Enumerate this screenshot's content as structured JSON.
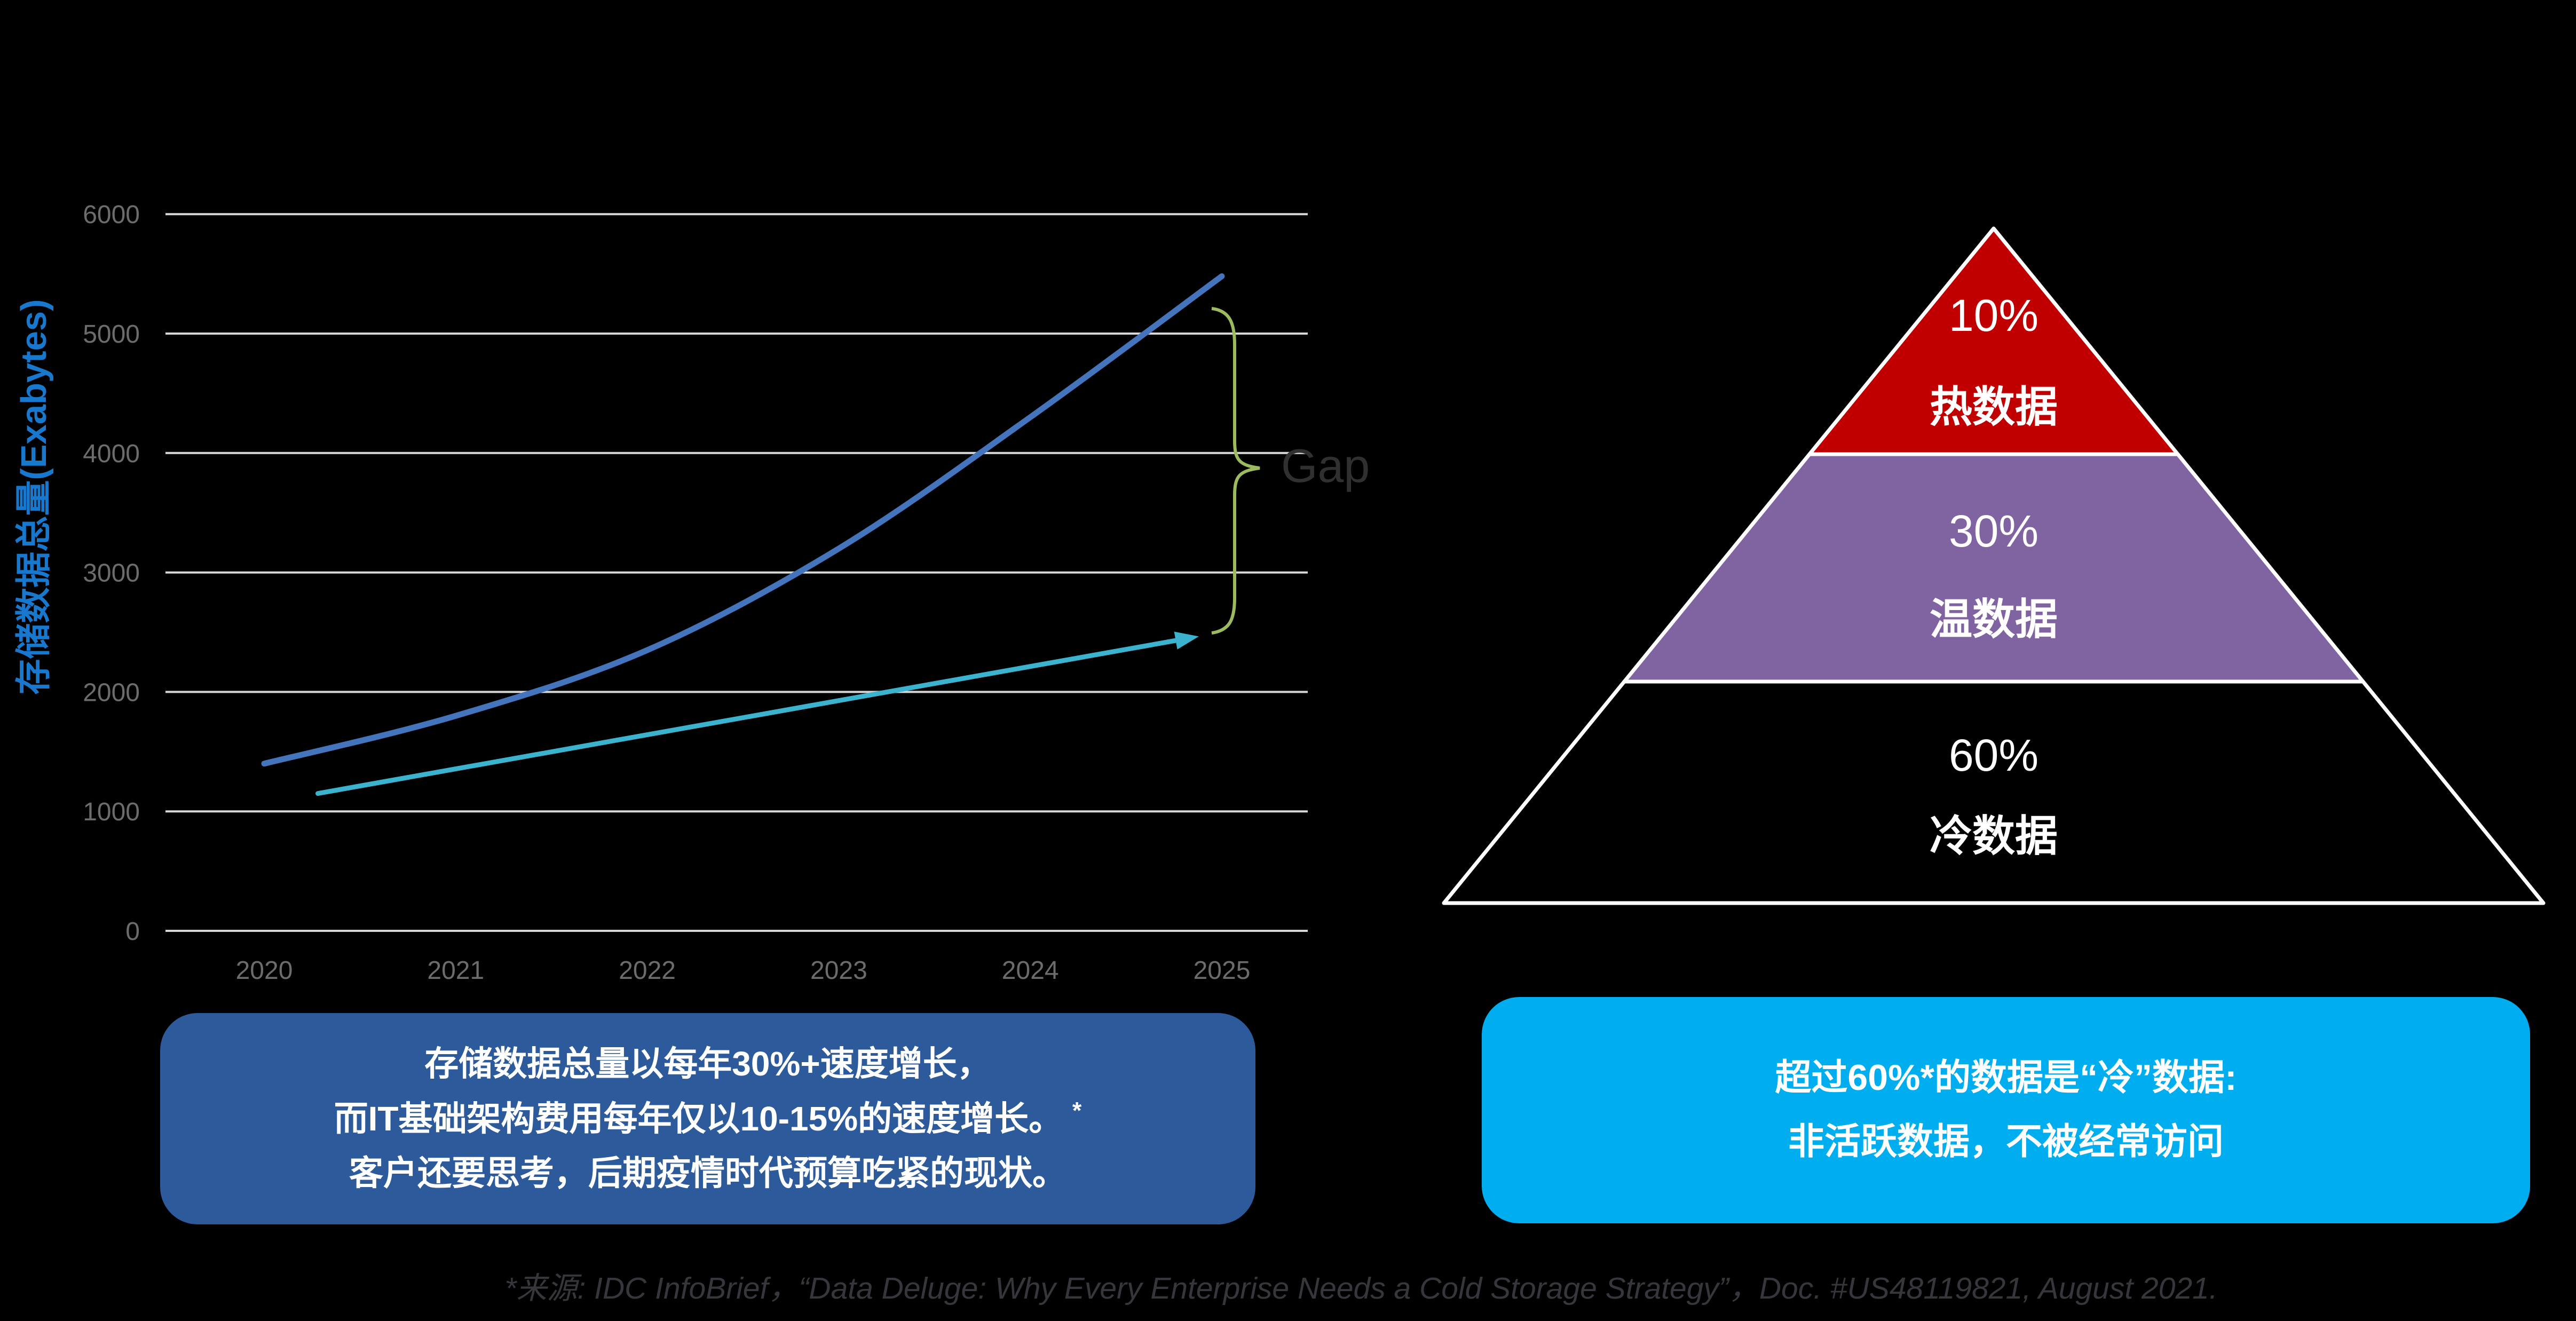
{
  "slide": {
    "background": "#000000",
    "source_note": "*来源: IDC InfoBrief，“Data Deluge: Why Every Enterprise Needs a Cold Storage Strategy”，Doc. #US48119821, August 2021.",
    "source_color": "#36363C"
  },
  "axis": {
    "grid_color": "#D8D8D8",
    "tick_color": "#6C6C6C",
    "title_color": "#1878CE"
  },
  "chart_data": {
    "type": "line",
    "title": "",
    "xlabel": "",
    "ylabel": "存储数据总量(Exabytes)",
    "x_ticks": [
      "2020",
      "2021",
      "2022",
      "2023",
      "2024",
      "2025"
    ],
    "y_ticks": [
      "0",
      "1000",
      "2000",
      "3000",
      "4000",
      "5000",
      "6000"
    ],
    "ylim": [
      0,
      6000
    ],
    "xlim": [
      2020,
      2025
    ],
    "grid": true,
    "legend": "none",
    "series": [
      {
        "name": "blue-growth-line",
        "color": "#4374BC",
        "width": 11,
        "style": "smooth-line",
        "x": [
          2020,
          2021,
          2022,
          2023,
          2024,
          2025
        ],
        "values": [
          1400,
          1800,
          2350,
          3200,
          4300,
          5480
        ]
      },
      {
        "name": "cyan-arrow-line",
        "color": "#3BB3CE",
        "width": 9,
        "style": "arrow-line",
        "x": [
          2020.28,
          2024.88
        ],
        "values": [
          1150,
          2465
        ]
      }
    ],
    "annotations": {
      "gap_label": "Gap",
      "gap_color": "#303030",
      "brace_color": "#9CBB5C",
      "brace_span_values": [
        2465,
        5480
      ]
    }
  },
  "pyramid": {
    "outline_color": "#FFFFFF",
    "tiers": [
      {
        "percent": "10%",
        "label": "热数据",
        "color": "#C00000"
      },
      {
        "percent": "30%",
        "label": "温数据",
        "color": "#8064A2"
      },
      {
        "percent": "60%",
        "label": "冷数据",
        "color": "#000000"
      }
    ]
  },
  "callouts": {
    "left": {
      "bg": "#2D5A9B",
      "line1": "存储数据总量以每年30%+速度增长，",
      "line2": "而IT基础架构费用每年仅以10-15%的速度增长。",
      "line2_sup": "*",
      "line3": "客户还要思考，后期疫情时代预算吃紧的现状。"
    },
    "right": {
      "bg": "#00AEEF",
      "line1": "超过60%*的数据是“冷”数据:",
      "line2": "非活跃数据，不被经常访问"
    }
  }
}
